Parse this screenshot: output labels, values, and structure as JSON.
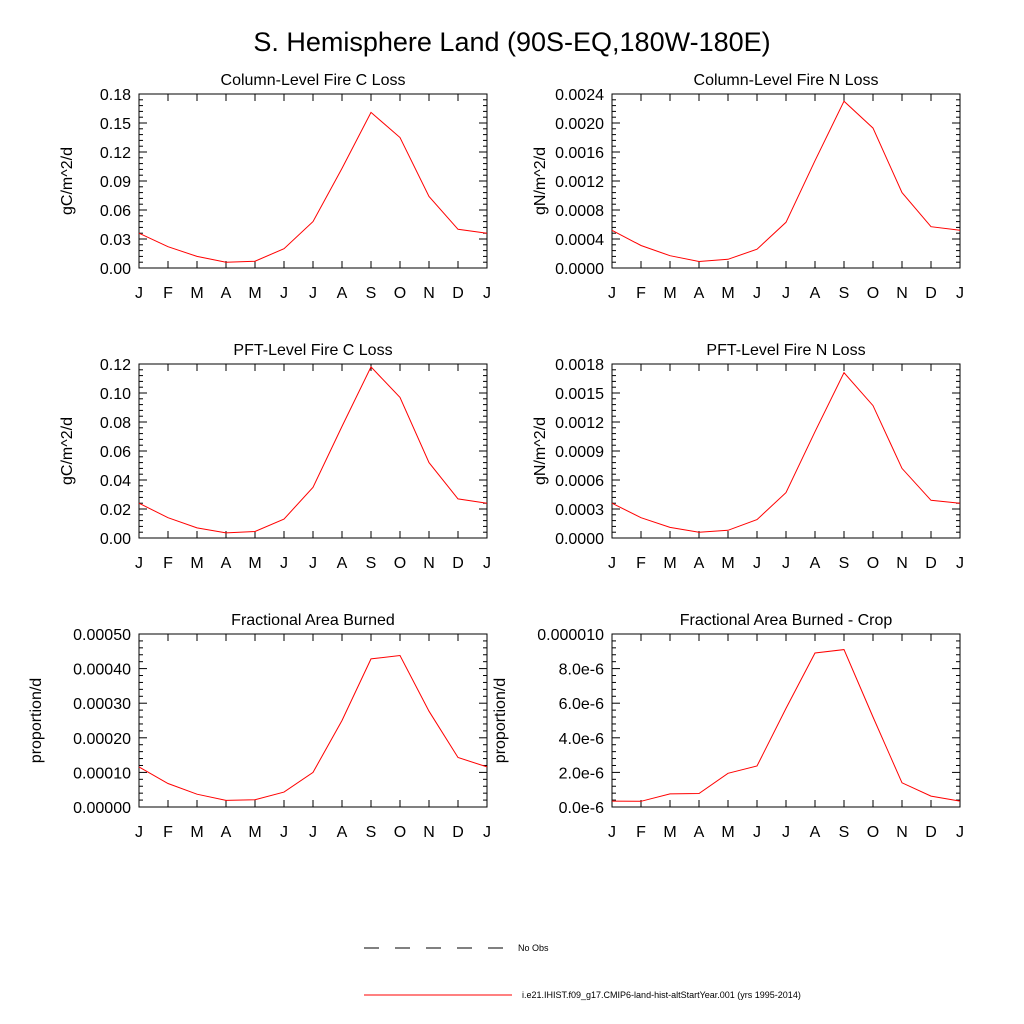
{
  "figure": {
    "title": "S. Hemisphere Land (90S-EQ,180W-180E)"
  },
  "legend": [
    {
      "label": "No Obs",
      "style": "dashed",
      "color": "#000000"
    },
    {
      "label": "i.e21.IHIST.f09_g17.CMIP6-land-hist-altStartYear.001 (yrs 1995-2014)",
      "style": "solid",
      "color": "#ff0000"
    }
  ],
  "chart_data": [
    {
      "type": "line",
      "title": "Column-Level Fire C Loss",
      "ylabel": "gC/m^2/d",
      "xlabel": "",
      "categories": [
        "J",
        "F",
        "M",
        "A",
        "M",
        "J",
        "J",
        "A",
        "S",
        "O",
        "N",
        "D",
        "J"
      ],
      "ylim": [
        0,
        0.18
      ],
      "yticks": [
        "0.00",
        "0.03",
        "0.06",
        "0.09",
        "0.12",
        "0.15",
        "0.18"
      ],
      "ytick_values": [
        0,
        0.03,
        0.06,
        0.09,
        0.12,
        0.15,
        0.18
      ],
      "series": [
        {
          "color": "#ff0000",
          "values": [
            0.036,
            0.022,
            0.012,
            0.006,
            0.007,
            0.02,
            0.048,
            0.103,
            0.161,
            0.135,
            0.074,
            0.04,
            0.036
          ]
        }
      ]
    },
    {
      "type": "line",
      "title": "Column-Level Fire N Loss",
      "ylabel": "gN/m^2/d",
      "xlabel": "",
      "categories": [
        "J",
        "F",
        "M",
        "A",
        "M",
        "J",
        "J",
        "A",
        "S",
        "O",
        "N",
        "D",
        "J"
      ],
      "ylim": [
        0,
        0.0024
      ],
      "yticks": [
        "0.0000",
        "0.0004",
        "0.0008",
        "0.0012",
        "0.0016",
        "0.0020",
        "0.0024"
      ],
      "ytick_values": [
        0,
        0.0004,
        0.0008,
        0.0012,
        0.0016,
        0.002,
        0.0024
      ],
      "series": [
        {
          "color": "#ff0000",
          "values": [
            0.00052,
            0.00031,
            0.00017,
            9e-05,
            0.00012,
            0.00026,
            0.00063,
            0.00148,
            0.0023,
            0.00193,
            0.00104,
            0.00057,
            0.00052
          ]
        }
      ]
    },
    {
      "type": "line",
      "title": "PFT-Level Fire C Loss",
      "ylabel": "gC/m^2/d",
      "xlabel": "",
      "categories": [
        "J",
        "F",
        "M",
        "A",
        "M",
        "J",
        "J",
        "A",
        "S",
        "O",
        "N",
        "D",
        "J"
      ],
      "ylim": [
        0,
        0.12
      ],
      "yticks": [
        "0.00",
        "0.02",
        "0.04",
        "0.06",
        "0.08",
        "0.10",
        "0.12"
      ],
      "ytick_values": [
        0,
        0.02,
        0.04,
        0.06,
        0.08,
        0.1,
        0.12
      ],
      "series": [
        {
          "color": "#ff0000",
          "values": [
            0.024,
            0.014,
            0.007,
            0.0035,
            0.0045,
            0.013,
            0.035,
            0.077,
            0.118,
            0.097,
            0.052,
            0.027,
            0.024
          ]
        }
      ]
    },
    {
      "type": "line",
      "title": "PFT-Level Fire N Loss",
      "ylabel": "gN/m^2/d",
      "xlabel": "",
      "categories": [
        "J",
        "F",
        "M",
        "A",
        "M",
        "J",
        "J",
        "A",
        "S",
        "O",
        "N",
        "D",
        "J"
      ],
      "ylim": [
        0,
        0.0018
      ],
      "yticks": [
        "0.0000",
        "0.0003",
        "0.0006",
        "0.0009",
        "0.0012",
        "0.0015",
        "0.0018"
      ],
      "ytick_values": [
        0,
        0.0003,
        0.0006,
        0.0009,
        0.0012,
        0.0015,
        0.0018
      ],
      "series": [
        {
          "color": "#ff0000",
          "values": [
            0.00036,
            0.00021,
            0.00011,
            6e-05,
            8e-05,
            0.00019,
            0.00047,
            0.0011,
            0.00171,
            0.00137,
            0.00072,
            0.00039,
            0.00036
          ]
        }
      ]
    },
    {
      "type": "line",
      "title": "Fractional Area Burned",
      "ylabel": "proportion/d",
      "xlabel": "",
      "categories": [
        "J",
        "F",
        "M",
        "A",
        "M",
        "J",
        "J",
        "A",
        "S",
        "O",
        "N",
        "D",
        "J"
      ],
      "ylim": [
        0,
        0.0005
      ],
      "yticks": [
        "0.00000",
        "0.00010",
        "0.00020",
        "0.00030",
        "0.00040",
        "0.00050"
      ],
      "ytick_values": [
        0,
        0.0001,
        0.0002,
        0.0003,
        0.0004,
        0.0005
      ],
      "series": [
        {
          "color": "#ff0000",
          "values": [
            0.000116,
            6.8e-05,
            3.7e-05,
            1.9e-05,
            2.1e-05,
            4.3e-05,
            0.0001,
            0.00025,
            0.000428,
            0.000438,
            0.000277,
            0.000143,
            0.000116
          ]
        }
      ]
    },
    {
      "type": "line",
      "title": "Fractional Area Burned - Crop",
      "ylabel": "proportion/d",
      "xlabel": "",
      "categories": [
        "J",
        "F",
        "M",
        "A",
        "M",
        "J",
        "J",
        "A",
        "S",
        "O",
        "N",
        "D",
        "J"
      ],
      "ylim": [
        0,
        1e-05
      ],
      "yticks": [
        "0.0e-6",
        "2.0e-6",
        "4.0e-6",
        "6.0e-6",
        "8.0e-6",
        "0.000010"
      ],
      "ytick_values": [
        0,
        2e-06,
        4e-06,
        6e-06,
        8e-06,
        1e-05
      ],
      "series": [
        {
          "color": "#ff0000",
          "values": [
            3.4e-07,
            3.3e-07,
            7.6e-07,
            7.8e-07,
            1.95e-06,
            2.37e-06,
            5.7e-06,
            8.9e-06,
            9.1e-06,
            5.2e-06,
            1.4e-06,
            6.3e-07,
            3.4e-07
          ]
        }
      ]
    }
  ]
}
